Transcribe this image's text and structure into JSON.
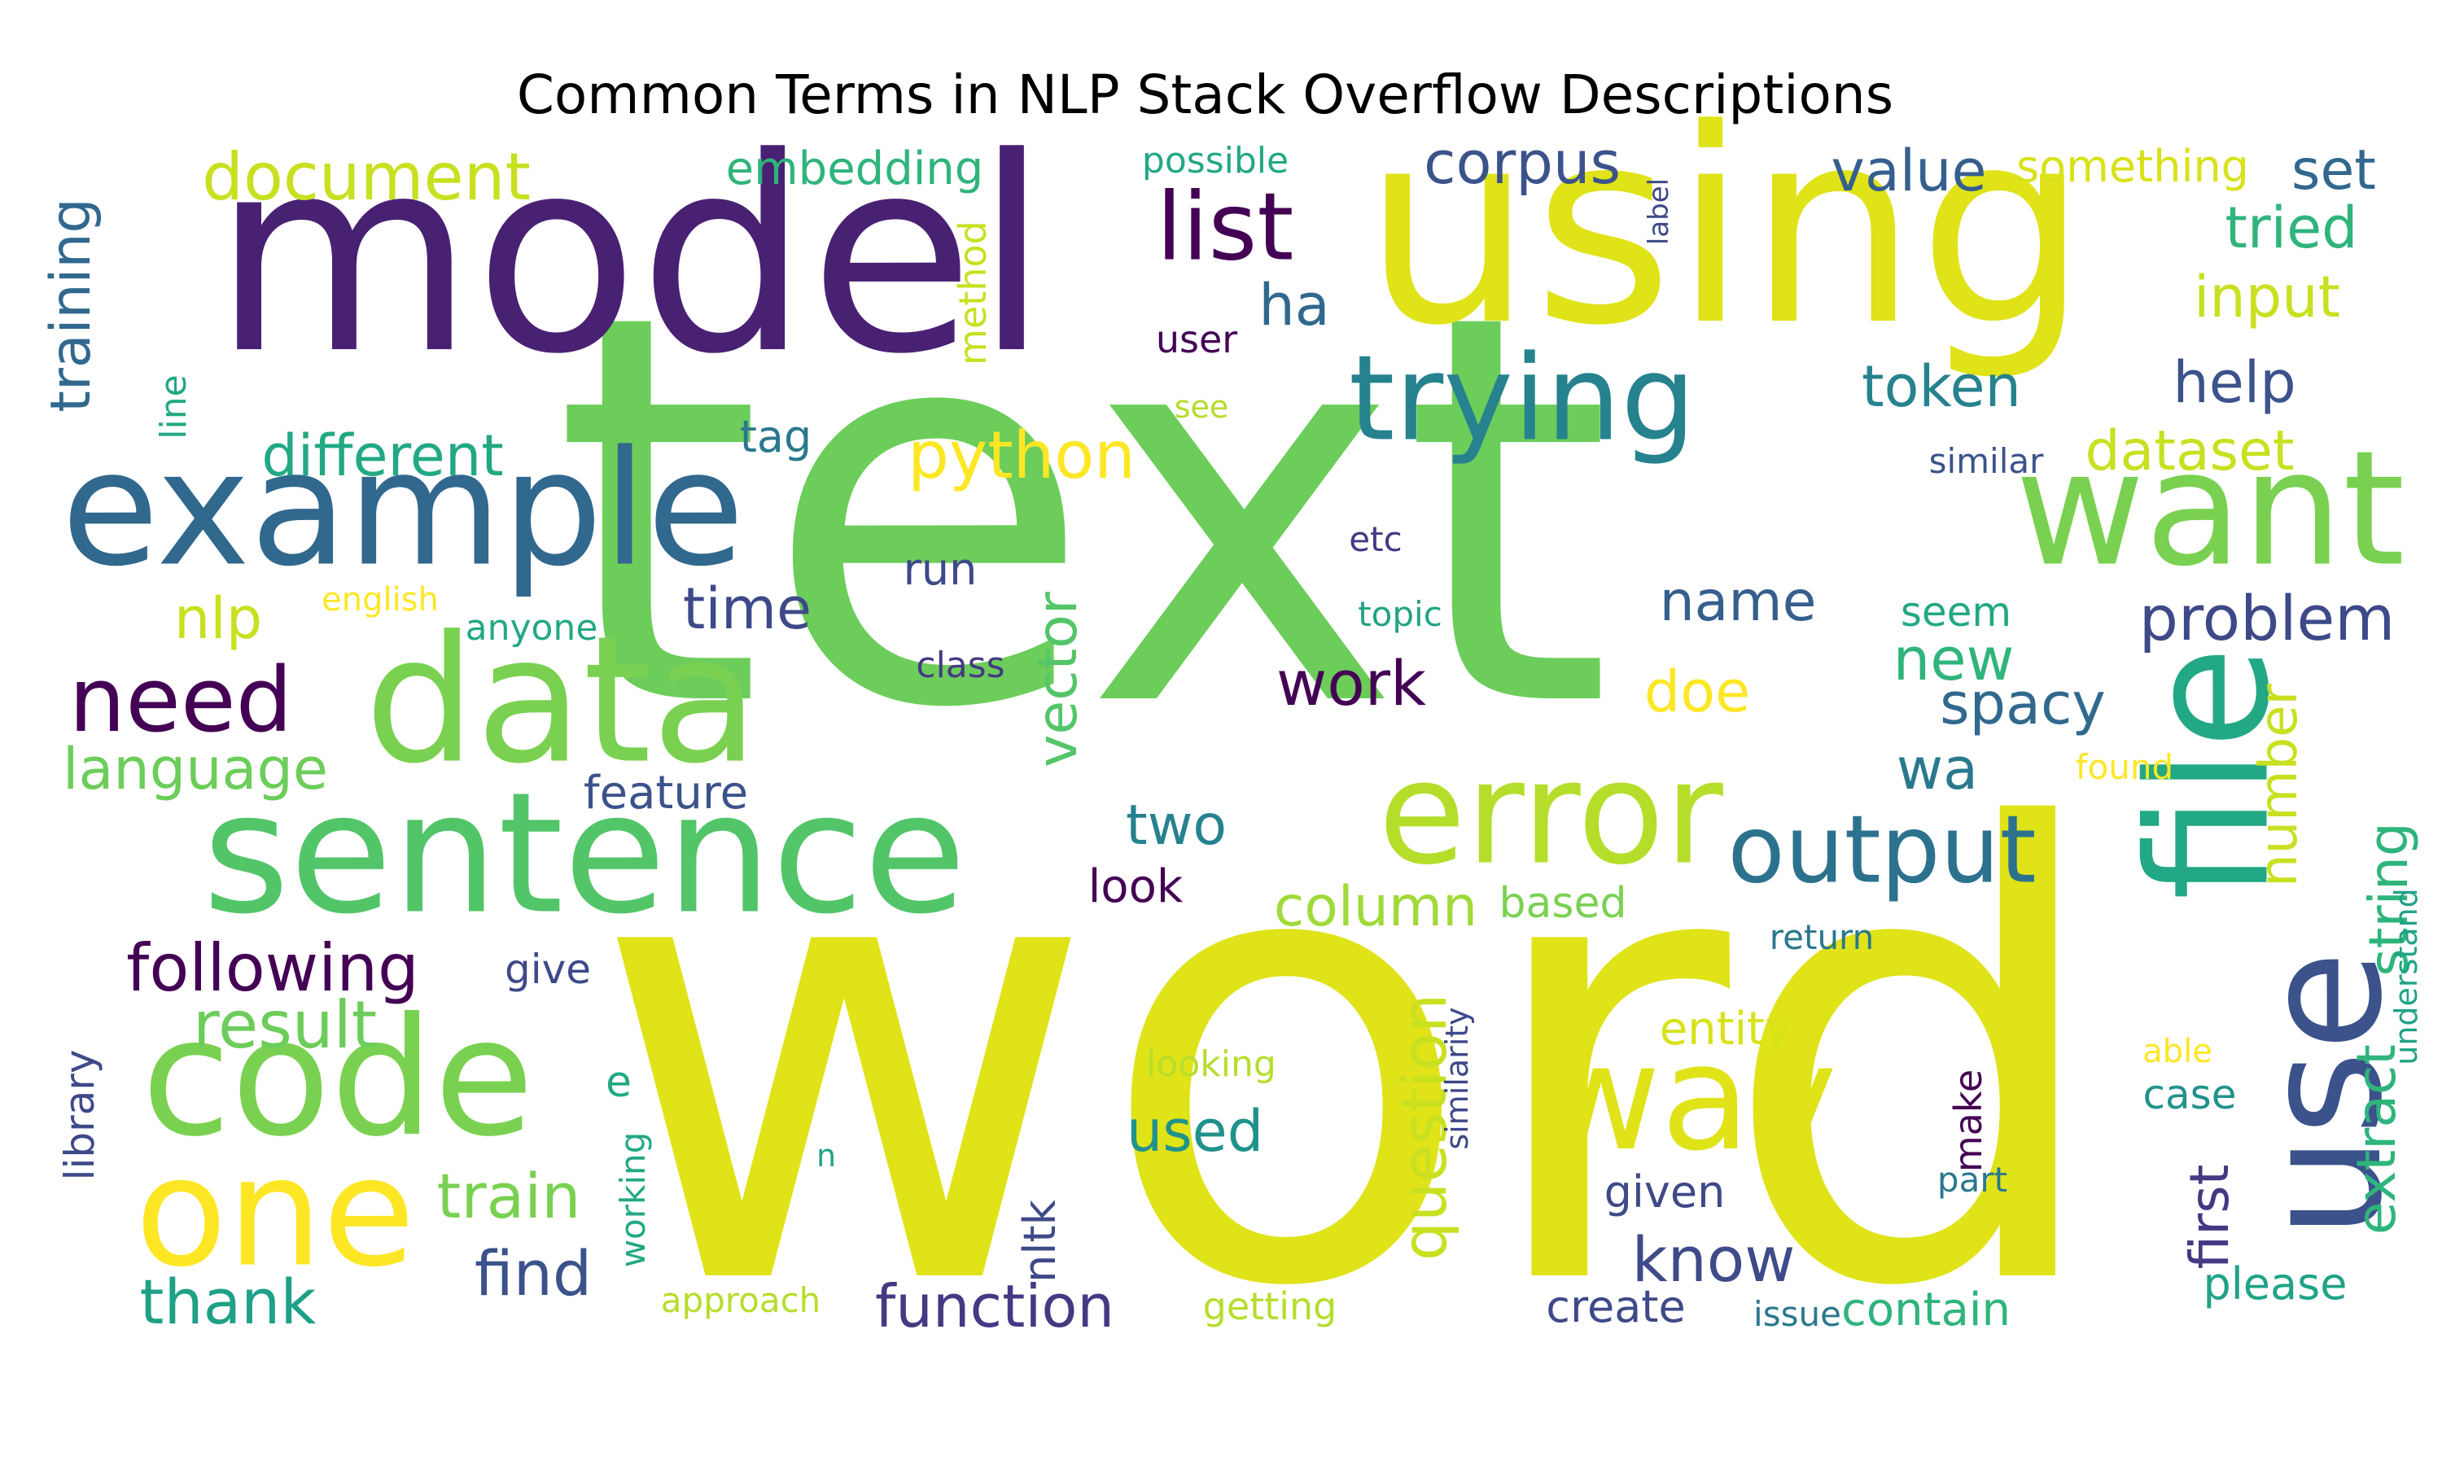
{
  "chart_data": {
    "type": "wordcloud",
    "title": "Common Terms in NLP Stack Overflow Descriptions",
    "colormap": "viridis",
    "words": [
      {
        "text": "word",
        "weight": 1.0,
        "color": "#dfe318"
      },
      {
        "text": "text",
        "weight": 0.95,
        "color": "#6ccd5a"
      },
      {
        "text": "model",
        "weight": 0.78,
        "color": "#482173"
      },
      {
        "text": "using",
        "weight": 0.7,
        "color": "#dfe318"
      },
      {
        "text": "example",
        "weight": 0.42,
        "color": "#31688e"
      },
      {
        "text": "data",
        "weight": 0.42,
        "color": "#7ad151"
      },
      {
        "text": "sentence",
        "weight": 0.42,
        "color": "#52c569"
      },
      {
        "text": "code",
        "weight": 0.42,
        "color": "#7ad151"
      },
      {
        "text": "file",
        "weight": 0.4,
        "color": "#22a884"
      },
      {
        "text": "use",
        "weight": 0.38,
        "color": "#3b528b"
      },
      {
        "text": "want",
        "weight": 0.38,
        "color": "#7ad151"
      },
      {
        "text": "one",
        "weight": 0.36,
        "color": "#fde725"
      },
      {
        "text": "error",
        "weight": 0.36,
        "color": "#b5de2b"
      },
      {
        "text": "way",
        "weight": 0.36,
        "color": "#dfe318"
      },
      {
        "text": "trying",
        "weight": 0.3,
        "color": "#26828e"
      },
      {
        "text": "list",
        "weight": 0.22,
        "color": "#440154"
      },
      {
        "text": "output",
        "weight": 0.22,
        "color": "#2c728e"
      },
      {
        "text": "need",
        "weight": 0.2,
        "color": "#440154"
      },
      {
        "text": "document",
        "weight": 0.15,
        "color": "#c8e020"
      },
      {
        "text": "following",
        "weight": 0.15,
        "color": "#440154"
      },
      {
        "text": "result",
        "weight": 0.14,
        "color": "#6ccd5a"
      },
      {
        "text": "python",
        "weight": 0.14,
        "color": "#fde725"
      },
      {
        "text": "thank",
        "weight": 0.14,
        "color": "#1fa187"
      },
      {
        "text": "train",
        "weight": 0.13,
        "color": "#7ad151"
      },
      {
        "text": "function",
        "weight": 0.13,
        "color": "#443983"
      },
      {
        "text": "know",
        "weight": 0.13,
        "color": "#3e4a89"
      },
      {
        "text": "question",
        "weight": 0.13,
        "color": "#c8e020"
      },
      {
        "text": "problem",
        "weight": 0.13,
        "color": "#3e4989"
      },
      {
        "text": "corpus",
        "weight": 0.12,
        "color": "#3b528b"
      },
      {
        "text": "different",
        "weight": 0.12,
        "color": "#22a884"
      },
      {
        "text": "language",
        "weight": 0.12,
        "color": "#6ccd5a"
      },
      {
        "text": "find",
        "weight": 0.12,
        "color": "#3b528b"
      },
      {
        "text": "work",
        "weight": 0.12,
        "color": "#440154"
      },
      {
        "text": "value",
        "weight": 0.11,
        "color": "#355f8d"
      },
      {
        "text": "tried",
        "weight": 0.11,
        "color": "#2fb47c"
      },
      {
        "text": "input",
        "weight": 0.11,
        "color": "#c8e020"
      },
      {
        "text": "help",
        "weight": 0.11,
        "color": "#3b528b"
      },
      {
        "text": "dataset",
        "weight": 0.11,
        "color": "#c8e020"
      },
      {
        "text": "name",
        "weight": 0.11,
        "color": "#355f8d"
      },
      {
        "text": "new",
        "weight": 0.11,
        "color": "#2fb47c"
      },
      {
        "text": "spacy",
        "weight": 0.11,
        "color": "#31688e"
      },
      {
        "text": "column",
        "weight": 0.11,
        "color": "#a0da39"
      },
      {
        "text": "ha",
        "weight": 0.11,
        "color": "#31688e"
      },
      {
        "text": "token",
        "weight": 0.1,
        "color": "#26828e"
      },
      {
        "text": "set",
        "weight": 0.1,
        "color": "#31688e"
      },
      {
        "text": "vector",
        "weight": 0.1,
        "color": "#54c568"
      },
      {
        "text": "string",
        "weight": 0.1,
        "color": "#2fb47c"
      },
      {
        "text": "extract",
        "weight": 0.1,
        "color": "#2fb47c"
      },
      {
        "text": "nlp",
        "weight": 0.1,
        "color": "#c8e020"
      },
      {
        "text": "time",
        "weight": 0.1,
        "color": "#3e4989"
      },
      {
        "text": "doe",
        "weight": 0.1,
        "color": "#fde725"
      },
      {
        "text": "wa",
        "weight": 0.1,
        "color": "#2a788e"
      },
      {
        "text": "used",
        "weight": 0.1,
        "color": "#20928c"
      },
      {
        "text": "two",
        "weight": 0.09,
        "color": "#26828e"
      },
      {
        "text": "training",
        "weight": 0.09,
        "color": "#31688e"
      },
      {
        "text": "number",
        "weight": 0.09,
        "color": "#c8e020"
      },
      {
        "text": "first",
        "weight": 0.09,
        "color": "#443983"
      },
      {
        "text": "embedding",
        "weight": 0.07,
        "color": "#2fb47c"
      },
      {
        "text": "something",
        "weight": 0.07,
        "color": "#d8e219"
      },
      {
        "text": "feature",
        "weight": 0.07,
        "color": "#3b528b"
      },
      {
        "text": "look",
        "weight": 0.07,
        "color": "#440154"
      },
      {
        "text": "based",
        "weight": 0.07,
        "color": "#7ad151"
      },
      {
        "text": "create",
        "weight": 0.07,
        "color": "#3e4989"
      },
      {
        "text": "contain",
        "weight": 0.07,
        "color": "#2fb47c"
      },
      {
        "text": "entity",
        "weight": 0.07,
        "color": "#d8e219"
      },
      {
        "text": "please",
        "weight": 0.07,
        "color": "#20a386"
      },
      {
        "text": "given",
        "weight": 0.07,
        "color": "#3e4989"
      },
      {
        "text": "nltk",
        "weight": 0.07,
        "color": "#3e4989"
      },
      {
        "text": "give",
        "weight": 0.06,
        "color": "#3e4989"
      },
      {
        "text": "library",
        "weight": 0.06,
        "color": "#3e4989"
      },
      {
        "text": "method",
        "weight": 0.06,
        "color": "#c8e020"
      },
      {
        "text": "tag",
        "weight": 0.06,
        "color": "#2a788e"
      },
      {
        "text": "run",
        "weight": 0.06,
        "color": "#3e4989"
      },
      {
        "text": "seem",
        "weight": 0.06,
        "color": "#22a884"
      },
      {
        "text": "e",
        "weight": 0.06,
        "color": "#22a884"
      },
      {
        "text": "working",
        "weight": 0.06,
        "color": "#22a884"
      },
      {
        "text": "make",
        "weight": 0.06,
        "color": "#440154"
      },
      {
        "text": "case",
        "weight": 0.06,
        "color": "#20928c"
      },
      {
        "text": "line",
        "weight": 0.06,
        "color": "#22a884"
      },
      {
        "text": "possible",
        "weight": 0.05,
        "color": "#22a884"
      },
      {
        "text": "user",
        "weight": 0.05,
        "color": "#440154"
      },
      {
        "text": "similar",
        "weight": 0.05,
        "color": "#3b528b"
      },
      {
        "text": "anyone",
        "weight": 0.05,
        "color": "#22a884"
      },
      {
        "text": "class",
        "weight": 0.05,
        "color": "#443983"
      },
      {
        "text": "topic",
        "weight": 0.05,
        "color": "#20a386"
      },
      {
        "text": "etc",
        "weight": 0.05,
        "color": "#443983"
      },
      {
        "text": "looking",
        "weight": 0.05,
        "color": "#b5de2b"
      },
      {
        "text": "return",
        "weight": 0.05,
        "color": "#2a788e"
      },
      {
        "text": "understand",
        "weight": 0.05,
        "color": "#20a386"
      },
      {
        "text": "similarity",
        "weight": 0.05,
        "color": "#3e4989"
      },
      {
        "text": "approach",
        "weight": 0.05,
        "color": "#b5de2b"
      },
      {
        "text": "getting",
        "weight": 0.05,
        "color": "#b5de2b"
      },
      {
        "text": "issue",
        "weight": 0.05,
        "color": "#2a788e"
      },
      {
        "text": "part",
        "weight": 0.05,
        "color": "#2a788e"
      },
      {
        "text": "english",
        "weight": 0.04,
        "color": "#fde725"
      },
      {
        "text": "found",
        "weight": 0.04,
        "color": "#fde725"
      },
      {
        "text": "able",
        "weight": 0.04,
        "color": "#fde725"
      },
      {
        "text": "see",
        "weight": 0.04,
        "color": "#b5de2b"
      },
      {
        "text": "label",
        "weight": 0.04,
        "color": "#3e4989"
      },
      {
        "text": "n",
        "weight": 0.04,
        "color": "#20a386"
      }
    ]
  }
}
